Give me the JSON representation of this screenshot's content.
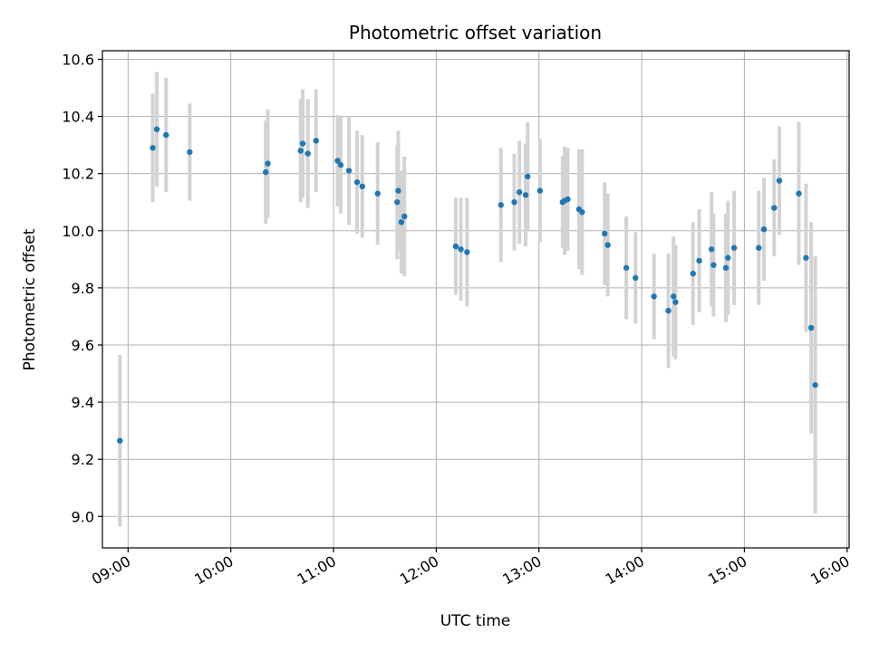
{
  "chart_data": {
    "type": "scatter",
    "title": "Photometric offset variation",
    "xlabel": "UTC time",
    "ylabel": "Photometric offset",
    "x_unit": "hours UTC",
    "xlim": [
      8.75,
      16.02
    ],
    "ylim": [
      8.89,
      10.63
    ],
    "grid": true,
    "x_ticks": [
      9,
      10,
      11,
      12,
      13,
      14,
      15,
      16
    ],
    "x_tick_labels": [
      "09:00",
      "10:00",
      "11:00",
      "12:00",
      "13:00",
      "14:00",
      "15:00",
      "16:00"
    ],
    "y_ticks": [
      9.0,
      9.2,
      9.4,
      9.6,
      9.8,
      10.0,
      10.2,
      10.4,
      10.6
    ],
    "y_tick_labels": [
      "9.0",
      "9.2",
      "9.4",
      "9.6",
      "9.8",
      "10.0",
      "10.2",
      "10.4",
      "10.6"
    ],
    "colors": {
      "marker": "#1f77b4",
      "errorbar": "#d3d3d3",
      "grid": "#b0b0b0"
    },
    "series": [
      {
        "values": [
          [
            8.92,
            9.265,
            0.3
          ],
          [
            9.24,
            10.29,
            0.19
          ],
          [
            9.28,
            10.355,
            0.2
          ],
          [
            9.37,
            10.335,
            0.2
          ],
          [
            9.6,
            10.275,
            0.17
          ],
          [
            10.34,
            10.205,
            0.18
          ],
          [
            10.36,
            10.235,
            0.19
          ],
          [
            10.68,
            10.28,
            0.18
          ],
          [
            10.7,
            10.305,
            0.19
          ],
          [
            10.75,
            10.27,
            0.19
          ],
          [
            10.83,
            10.315,
            0.18
          ],
          [
            11.04,
            10.245,
            0.16
          ],
          [
            11.07,
            10.23,
            0.17
          ],
          [
            11.15,
            10.21,
            0.19
          ],
          [
            11.23,
            10.17,
            0.18
          ],
          [
            11.28,
            10.155,
            0.18
          ],
          [
            11.43,
            10.13,
            0.18
          ],
          [
            11.62,
            10.1,
            0.2
          ],
          [
            11.63,
            10.14,
            0.21
          ],
          [
            11.66,
            10.03,
            0.18
          ],
          [
            11.69,
            10.05,
            0.21
          ],
          [
            12.19,
            9.945,
            0.17
          ],
          [
            12.24,
            9.935,
            0.18
          ],
          [
            12.3,
            9.925,
            0.19
          ],
          [
            12.63,
            10.09,
            0.2
          ],
          [
            12.76,
            10.1,
            0.17
          ],
          [
            12.81,
            10.135,
            0.18
          ],
          [
            12.87,
            10.125,
            0.18
          ],
          [
            12.89,
            10.19,
            0.19
          ],
          [
            13.01,
            10.14,
            0.18
          ],
          [
            13.23,
            10.1,
            0.16
          ],
          [
            13.25,
            10.105,
            0.19
          ],
          [
            13.28,
            10.11,
            0.18
          ],
          [
            13.39,
            10.075,
            0.21
          ],
          [
            13.42,
            10.065,
            0.22
          ],
          [
            13.64,
            9.99,
            0.18
          ],
          [
            13.67,
            9.95,
            0.18
          ],
          [
            13.85,
            9.87,
            0.18
          ],
          [
            13.94,
            9.835,
            0.16
          ],
          [
            14.12,
            9.77,
            0.15
          ],
          [
            14.26,
            9.72,
            0.2
          ],
          [
            14.31,
            9.77,
            0.21
          ],
          [
            14.33,
            9.75,
            0.2
          ],
          [
            14.5,
            9.85,
            0.18
          ],
          [
            14.56,
            9.895,
            0.18
          ],
          [
            14.68,
            9.935,
            0.2
          ],
          [
            14.7,
            9.88,
            0.18
          ],
          [
            14.82,
            9.87,
            0.19
          ],
          [
            14.84,
            9.905,
            0.2
          ],
          [
            14.9,
            9.94,
            0.2
          ],
          [
            15.14,
            9.94,
            0.2
          ],
          [
            15.19,
            10.005,
            0.18
          ],
          [
            15.29,
            10.08,
            0.17
          ],
          [
            15.34,
            10.175,
            0.19
          ],
          [
            15.53,
            10.13,
            0.25
          ],
          [
            15.6,
            9.905,
            0.26
          ],
          [
            15.65,
            9.66,
            0.37
          ],
          [
            15.69,
            9.46,
            0.45
          ]
        ]
      }
    ]
  }
}
